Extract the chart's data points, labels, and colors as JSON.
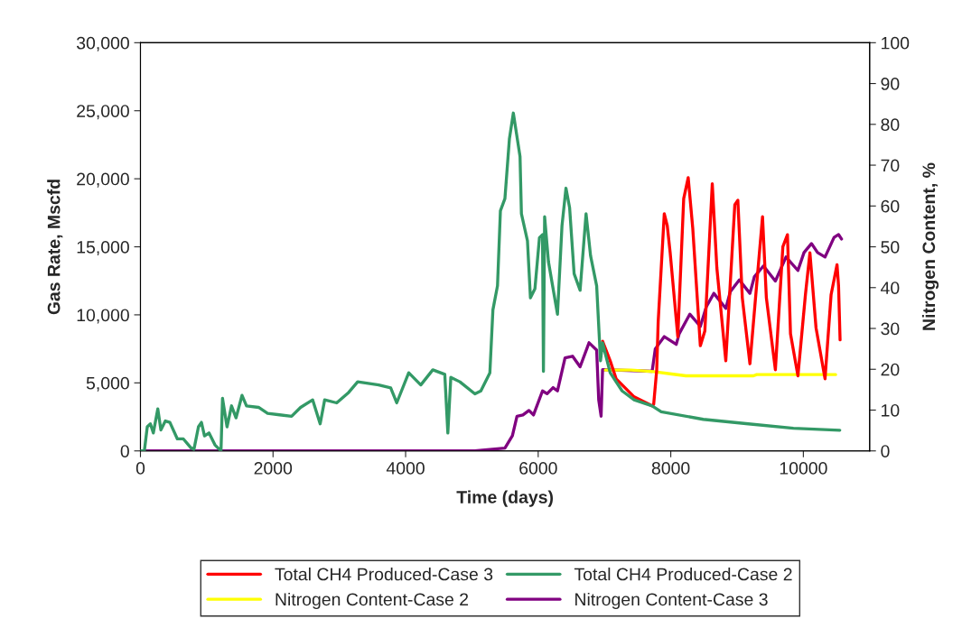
{
  "chart_data": {
    "type": "line",
    "xlabel": "Time (days)",
    "ylabel": "Gas Rate, Mscfd",
    "y2label": "Nitrogen Content, %",
    "xlim": [
      0,
      11000
    ],
    "xticks": [
      0,
      2000,
      4000,
      6000,
      8000,
      10000
    ],
    "ylim": [
      0,
      30000
    ],
    "yticks": [
      0,
      {
        "value": 5000,
        "label": "5,000"
      },
      {
        "value": 10000,
        "label": "10,000"
      },
      {
        "value": 15000,
        "label": "15,000"
      },
      {
        "value": 20000,
        "label": "20,000"
      },
      {
        "value": 25000,
        "label": "25,000"
      },
      {
        "value": 30000,
        "label": "30,000"
      }
    ],
    "y2lim": [
      0,
      100
    ],
    "y2ticks": [
      0,
      10,
      20,
      30,
      40,
      50,
      60,
      70,
      80,
      90,
      100
    ],
    "grid": false,
    "legend": "bottom",
    "marker": "none",
    "line_style": "solid",
    "series": [
      {
        "name": "Total CH4 Produced-Case 3",
        "color": "#ff0000",
        "x": [
          6971,
          7086,
          7176,
          7447,
          7719,
          7742,
          7788,
          7810,
          7902,
          7947,
          7991,
          8106,
          8195,
          8263,
          8332,
          8446,
          8514,
          8626,
          8695,
          8830,
          8966,
          9012,
          9079,
          9194,
          9306,
          9384,
          9442,
          9578,
          9691,
          9760,
          9806,
          9918,
          10031,
          10099,
          10191,
          10327,
          10418,
          10508,
          10531,
          10554
        ],
        "values": [
          8060,
          6620,
          5300,
          3970,
          3310,
          3420,
          5960,
          9490,
          17430,
          16550,
          14560,
          8390,
          18540,
          20080,
          16330,
          7730,
          8820,
          19640,
          13460,
          6620,
          18090,
          18420,
          11250,
          6400,
          12800,
          17210,
          11250,
          5960,
          15010,
          15890,
          8610,
          5520,
          11470,
          14560,
          9050,
          5300,
          11470,
          13680,
          12130,
          8160
        ]
      },
      {
        "name": "Total CH4 Produced-Case 2",
        "color": "#339966",
        "x": [
          0,
          59,
          103,
          150,
          194,
          262,
          308,
          376,
          444,
          557,
          648,
          762,
          807,
          875,
          920,
          966,
          1034,
          1124,
          1192,
          1215,
          1238,
          1306,
          1374,
          1442,
          1532,
          1600,
          1782,
          1918,
          2099,
          2280,
          2416,
          2598,
          2711,
          2779,
          2960,
          3141,
          3277,
          3594,
          3775,
          3866,
          4047,
          4229,
          4410,
          4591,
          4637,
          4682,
          4818,
          5045,
          5135,
          5271,
          5317,
          5386,
          5430,
          5498,
          5566,
          5625,
          5726,
          5747,
          5838,
          5883,
          5951,
          6019,
          6065,
          6079,
          6097,
          6155,
          6291,
          6359,
          6419,
          6474,
          6542,
          6632,
          6722,
          6790,
          6882,
          6940,
          6971,
          7086,
          7266,
          7447,
          7719,
          7856,
          8490,
          9170,
          9850,
          10550
        ],
        "values": [
          0,
          0,
          1770,
          1990,
          1320,
          3090,
          1540,
          2200,
          2100,
          880,
          880,
          220,
          110,
          1770,
          2100,
          1100,
          1320,
          440,
          110,
          0,
          3860,
          1770,
          3310,
          2430,
          4080,
          3310,
          3200,
          2760,
          2650,
          2540,
          3200,
          3750,
          1990,
          3750,
          3530,
          4300,
          5080,
          4850,
          4630,
          3530,
          5740,
          4850,
          5960,
          5630,
          1320,
          5410,
          5080,
          4190,
          4410,
          5740,
          10370,
          12130,
          17650,
          18540,
          22950,
          24830,
          21630,
          17430,
          15440,
          11250,
          11920,
          15670,
          15890,
          5850,
          17210,
          13900,
          10040,
          16550,
          19310,
          17870,
          13020,
          11800,
          17430,
          14350,
          12130,
          6620,
          7940,
          5740,
          4410,
          3750,
          3310,
          2870,
          2320,
          1990,
          1660,
          1520
        ]
      },
      {
        "name": "Nitrogen Content-Case 2",
        "color": "#ffff00",
        "axis": "y2",
        "x": [
          7013,
          7402,
          7743,
          7986,
          8228,
          9248,
          9297,
          10487
        ],
        "values": [
          19.8,
          19.8,
          19.4,
          18.9,
          18.4,
          18.4,
          18.7,
          18.7
        ]
      },
      {
        "name": "Nitrogen Content-Case 3",
        "color": "#800080",
        "axis": "y2",
        "x": [
          0,
          5045,
          5498,
          5611,
          5680,
          5770,
          5861,
          5929,
          6065,
          6134,
          6224,
          6291,
          6405,
          6518,
          6632,
          6767,
          6882,
          6913,
          6949,
          6971,
          7719,
          7766,
          7902,
          8083,
          8127,
          8287,
          8446,
          8536,
          8650,
          8830,
          8898,
          9034,
          9194,
          9262,
          9398,
          9578,
          9738,
          9918,
          10010,
          10123,
          10214,
          10327,
          10463,
          10531,
          10576
        ],
        "values": [
          0,
          0,
          0.7,
          3.7,
          8.5,
          8.8,
          9.9,
          8.8,
          14.7,
          14.0,
          15.5,
          14.7,
          22.8,
          23.2,
          20.6,
          26.5,
          24.7,
          12.5,
          8.5,
          19.9,
          19.5,
          25.0,
          28.0,
          26.1,
          28.7,
          33.5,
          30.5,
          35.3,
          38.6,
          34.9,
          39.0,
          41.9,
          38.6,
          42.7,
          45.3,
          41.6,
          47.5,
          44.2,
          48.6,
          50.8,
          48.6,
          47.5,
          52.3,
          53.0,
          51.9
        ]
      }
    ]
  }
}
